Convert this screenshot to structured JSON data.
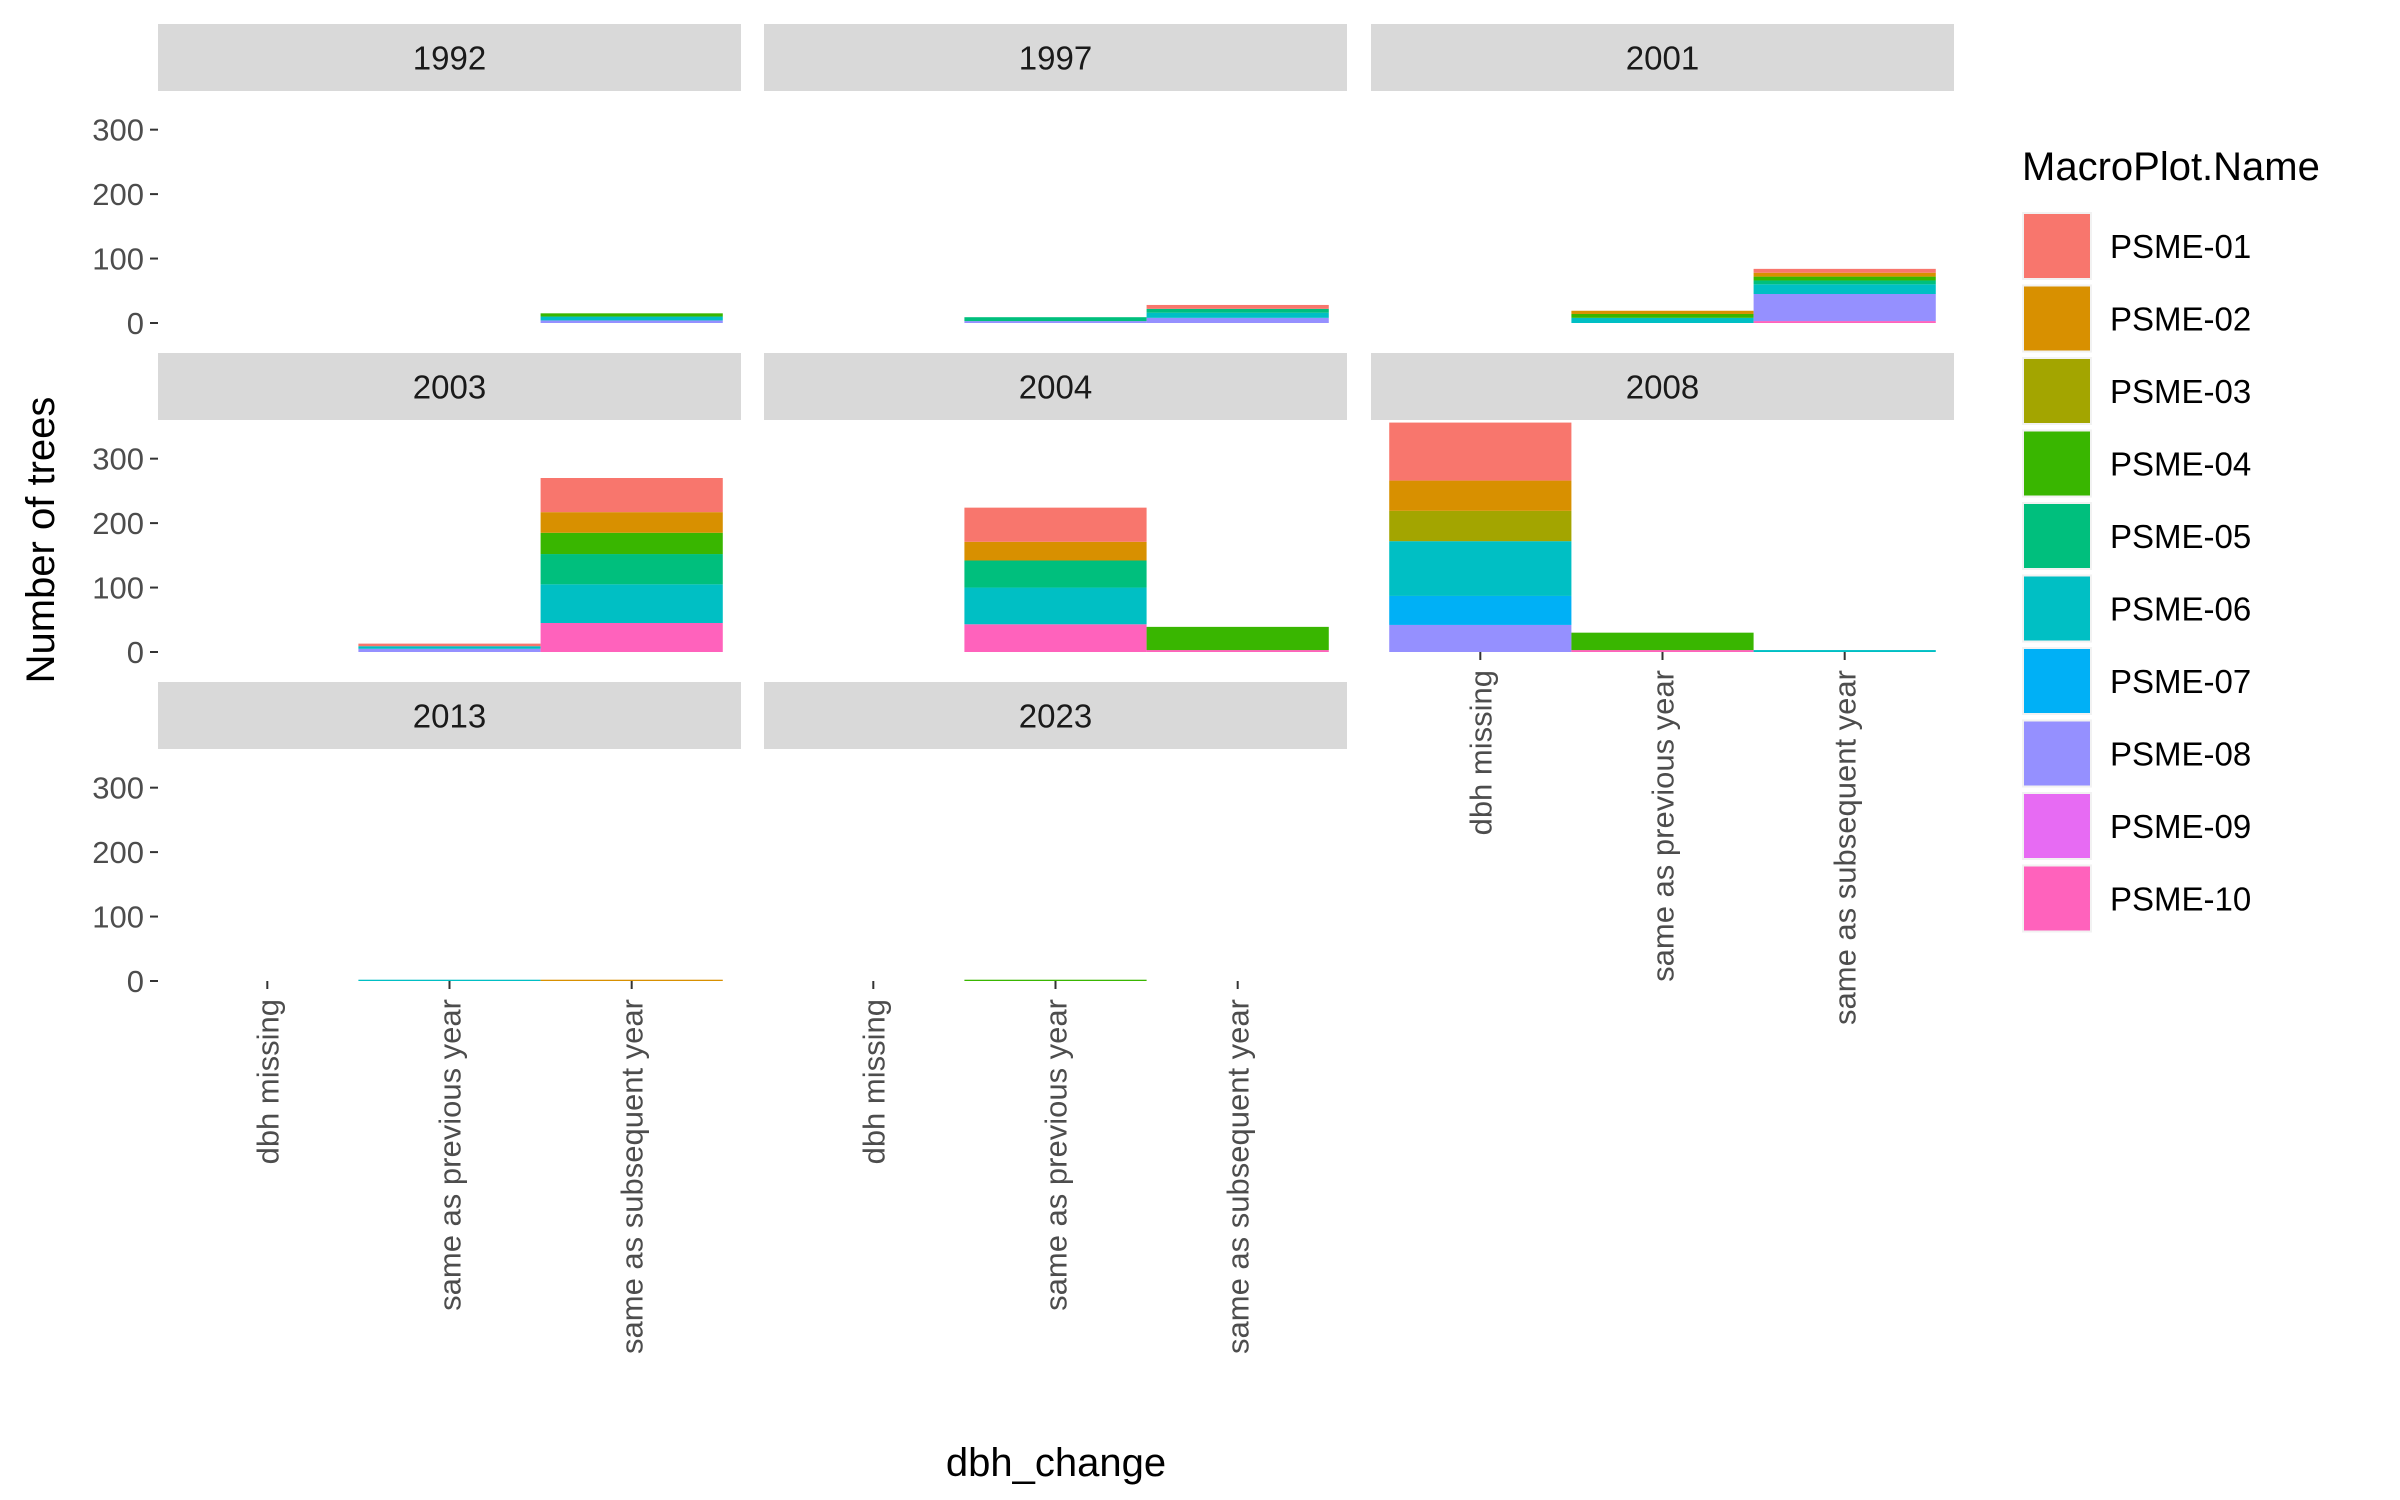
{
  "chart_data": {
    "type": "bar",
    "stacked": true,
    "faceted": true,
    "xlabel": "dbh_change",
    "ylabel": "Number of trees",
    "ylim": [
      0,
      360
    ],
    "y_ticks": [
      0,
      100,
      200,
      300
    ],
    "categories": [
      "dbh missing",
      "same as previous year",
      "same as subsequent year"
    ],
    "grid": false,
    "legend": {
      "title": "MacroPlot.Name",
      "position": "right",
      "entries": [
        {
          "name": "PSME-01",
          "color": "#F8766D"
        },
        {
          "name": "PSME-02",
          "color": "#D89000"
        },
        {
          "name": "PSME-03",
          "color": "#A3A500"
        },
        {
          "name": "PSME-04",
          "color": "#39B600"
        },
        {
          "name": "PSME-05",
          "color": "#00BF7D"
        },
        {
          "name": "PSME-06",
          "color": "#00BFC4"
        },
        {
          "name": "PSME-07",
          "color": "#00B0F6"
        },
        {
          "name": "PSME-08",
          "color": "#9590FF"
        },
        {
          "name": "PSME-09",
          "color": "#E76BF3"
        },
        {
          "name": "PSME-10",
          "color": "#FF62BC"
        }
      ]
    },
    "panels": [
      {
        "label": "1992",
        "bars": [
          {
            "category": "same as subsequent year",
            "stack": [
              {
                "series": "PSME-08",
                "value": 4
              },
              {
                "series": "PSME-06",
                "value": 6
              },
              {
                "series": "PSME-04",
                "value": 5
              }
            ]
          }
        ]
      },
      {
        "label": "1997",
        "bars": [
          {
            "category": "same as previous year",
            "stack": [
              {
                "series": "PSME-08",
                "value": 3
              },
              {
                "series": "PSME-05",
                "value": 6
              }
            ]
          },
          {
            "category": "same as subsequent year",
            "stack": [
              {
                "series": "PSME-08",
                "value": 8
              },
              {
                "series": "PSME-06",
                "value": 8
              },
              {
                "series": "PSME-05",
                "value": 6
              },
              {
                "series": "PSME-01",
                "value": 6
              }
            ]
          }
        ]
      },
      {
        "label": "2001",
        "bars": [
          {
            "category": "same as previous year",
            "stack": [
              {
                "series": "PSME-06",
                "value": 8
              },
              {
                "series": "PSME-04",
                "value": 6
              },
              {
                "series": "PSME-02",
                "value": 5
              }
            ]
          },
          {
            "category": "same as subsequent year",
            "stack": [
              {
                "series": "PSME-10",
                "value": 3
              },
              {
                "series": "PSME-08",
                "value": 42
              },
              {
                "series": "PSME-06",
                "value": 15
              },
              {
                "series": "PSME-05",
                "value": 6
              },
              {
                "series": "PSME-04",
                "value": 6
              },
              {
                "series": "PSME-02",
                "value": 6
              },
              {
                "series": "PSME-01",
                "value": 6
              }
            ]
          }
        ]
      },
      {
        "label": "2003",
        "bars": [
          {
            "category": "same as previous year",
            "stack": [
              {
                "series": "PSME-08",
                "value": 5
              },
              {
                "series": "PSME-06",
                "value": 4
              },
              {
                "series": "PSME-01",
                "value": 4
              }
            ]
          },
          {
            "category": "same as subsequent year",
            "stack": [
              {
                "series": "PSME-10",
                "value": 45
              },
              {
                "series": "PSME-06",
                "value": 60
              },
              {
                "series": "PSME-05",
                "value": 47
              },
              {
                "series": "PSME-04",
                "value": 33
              },
              {
                "series": "PSME-02",
                "value": 32
              },
              {
                "series": "PSME-01",
                "value": 53
              }
            ]
          }
        ]
      },
      {
        "label": "2004",
        "bars": [
          {
            "category": "same as previous year",
            "stack": [
              {
                "series": "PSME-10",
                "value": 43
              },
              {
                "series": "PSME-06",
                "value": 57
              },
              {
                "series": "PSME-05",
                "value": 42
              },
              {
                "series": "PSME-02",
                "value": 29
              },
              {
                "series": "PSME-01",
                "value": 53
              }
            ]
          },
          {
            "category": "same as subsequent year",
            "stack": [
              {
                "series": "PSME-10",
                "value": 3
              },
              {
                "series": "PSME-04",
                "value": 36
              }
            ]
          }
        ]
      },
      {
        "label": "2008",
        "bars": [
          {
            "category": "dbh missing",
            "stack": [
              {
                "series": "PSME-08",
                "value": 42
              },
              {
                "series": "PSME-07",
                "value": 45
              },
              {
                "series": "PSME-06",
                "value": 85
              },
              {
                "series": "PSME-03",
                "value": 47
              },
              {
                "series": "PSME-02",
                "value": 47
              },
              {
                "series": "PSME-01",
                "value": 90
              }
            ]
          },
          {
            "category": "same as previous year",
            "stack": [
              {
                "series": "PSME-10",
                "value": 3
              },
              {
                "series": "PSME-04",
                "value": 27
              }
            ]
          },
          {
            "category": "same as subsequent year",
            "stack": [
              {
                "series": "PSME-06",
                "value": 3
              }
            ]
          }
        ]
      },
      {
        "label": "2013",
        "bars": [
          {
            "category": "same as previous year",
            "stack": [
              {
                "series": "PSME-06",
                "value": 2
              }
            ]
          },
          {
            "category": "same as subsequent year",
            "stack": [
              {
                "series": "PSME-02",
                "value": 2
              }
            ]
          }
        ]
      },
      {
        "label": "2023",
        "bars": [
          {
            "category": "same as previous year",
            "stack": [
              {
                "series": "PSME-04",
                "value": 2
              }
            ]
          }
        ]
      }
    ]
  }
}
